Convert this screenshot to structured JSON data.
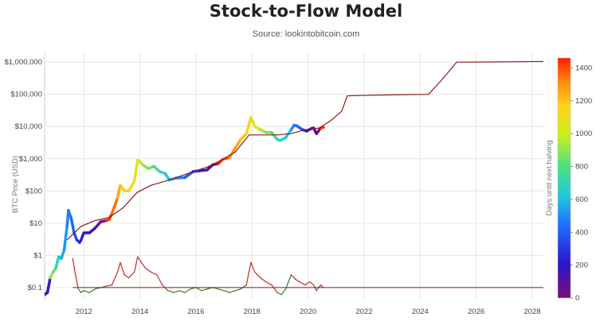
{
  "title": "Stock-to-Flow Model",
  "subtitle": "Source: lookintobitcoin.com",
  "colors": {
    "model_line": "#8b1a1a",
    "ratio_low": "#2e7d32",
    "ratio_high": "#c62828",
    "ratio_baseline": "#8b1a1a",
    "grid": "#e6e6e6"
  },
  "chart_data": {
    "type": "line",
    "title": "Stock-to-Flow Model",
    "subtitle": "Source: lookintobitcoin.com",
    "xlabel": "",
    "ylabel": "BTC Price (USD)",
    "yscale": "log",
    "xlim": [
      2010.6,
      2028.4
    ],
    "ylim": [
      0.04,
      2000000
    ],
    "grid": true,
    "x_ticks": [
      2012,
      2014,
      2016,
      2018,
      2020,
      2022,
      2024,
      2026,
      2028
    ],
    "x_tick_labels": [
      "2012",
      "2014",
      "2016",
      "2018",
      "2020",
      "2022",
      "2024",
      "2026",
      "2028"
    ],
    "y_ticks": [
      0.1,
      1,
      10,
      100,
      1000,
      10000,
      100000,
      1000000
    ],
    "y_tick_labels": [
      "$0.1",
      "$1",
      "$10",
      "$100",
      "$1,000",
      "$10,000",
      "$100,000",
      "$1,000,000"
    ],
    "colorbar": {
      "label": "Days until next halving",
      "min": 0,
      "max": 1460,
      "ticks": [
        0,
        200,
        400,
        600,
        800,
        1000,
        1200,
        1400
      ],
      "tick_labels": [
        "0",
        "200",
        "400",
        "600",
        "800",
        "1000",
        "1200",
        "1400"
      ]
    },
    "series": [
      {
        "key": "price",
        "style": "colored-by-days-to-halving",
        "x": [
          2010.6,
          2010.7,
          2010.8,
          2010.9,
          2011.0,
          2011.1,
          2011.2,
          2011.3,
          2011.4,
          2011.45,
          2011.55,
          2011.65,
          2011.75,
          2011.85,
          2011.9,
          2012.0,
          2012.2,
          2012.4,
          2012.6,
          2012.8,
          2012.9,
          2013.0,
          2013.2,
          2013.3,
          2013.45,
          2013.6,
          2013.8,
          2013.92,
          2014.0,
          2014.15,
          2014.3,
          2014.5,
          2014.7,
          2014.9,
          2015.05,
          2015.3,
          2015.6,
          2015.9,
          2016.1,
          2016.4,
          2016.6,
          2016.8,
          2016.95,
          2017.2,
          2017.45,
          2017.6,
          2017.8,
          2017.96,
          2018.1,
          2018.3,
          2018.5,
          2018.7,
          2018.9,
          2019.0,
          2019.2,
          2019.4,
          2019.5,
          2019.6,
          2019.8,
          2019.95,
          2020.1,
          2020.2,
          2020.3,
          2020.45,
          2020.55
        ],
        "y": [
          0.06,
          0.07,
          0.2,
          0.3,
          0.4,
          0.9,
          0.8,
          1.5,
          8,
          25,
          14,
          5,
          3,
          2.5,
          3,
          5,
          5,
          7,
          11,
          12,
          13,
          20,
          60,
          150,
          100,
          100,
          200,
          900,
          800,
          600,
          500,
          580,
          400,
          350,
          220,
          250,
          260,
          400,
          420,
          450,
          650,
          700,
          950,
          1100,
          2500,
          4000,
          6000,
          19000,
          10000,
          8000,
          6500,
          6500,
          4000,
          3700,
          4500,
          8000,
          11000,
          10500,
          8000,
          7200,
          8500,
          9000,
          6000,
          9000,
          9500
        ],
        "days_to_halving": [
          140,
          160,
          900,
          850,
          700,
          600,
          560,
          520,
          480,
          460,
          420,
          360,
          300,
          260,
          240,
          200,
          140,
          80,
          30,
          1450,
          1420,
          1350,
          1250,
          1180,
          1150,
          1100,
          1050,
          1000,
          960,
          900,
          850,
          760,
          700,
          620,
          560,
          480,
          400,
          300,
          220,
          130,
          20,
          1440,
          1400,
          1300,
          1240,
          1200,
          1150,
          1080,
          1000,
          920,
          860,
          780,
          700,
          680,
          620,
          500,
          450,
          420,
          300,
          220,
          150,
          110,
          70,
          1440,
          1400
        ]
      },
      {
        "key": "model",
        "name": "",
        "x": [
          2011.4,
          2011.9,
          2012.4,
          2012.9,
          2013.4,
          2013.9,
          2014.4,
          2014.9,
          2015.4,
          2015.9,
          2016.4,
          2016.9,
          2017.4,
          2017.9,
          2018.4,
          2018.9,
          2019.4,
          2019.9,
          2020.4,
          2020.8,
          2021.2,
          2021.4,
          2021.8,
          2022.5,
          2023.5,
          2024.3,
          2024.8,
          2025.3,
          2025.6,
          2026.5,
          2027.5,
          2028.4
        ],
        "y": [
          3,
          8,
          12,
          15,
          30,
          90,
          150,
          200,
          280,
          400,
          550,
          900,
          1600,
          5500,
          5500,
          5500,
          6000,
          8000,
          9000,
          15000,
          30000,
          90000,
          92000,
          95000,
          98000,
          100000,
          300000,
          1000000,
          1000000,
          1010000,
          1030000,
          1050000
        ]
      },
      {
        "key": "ratio",
        "name": "",
        "x": [
          2011.6,
          2011.7,
          2011.8,
          2011.9,
          2012.0,
          2012.2,
          2012.4,
          2012.6,
          2012.8,
          2013.0,
          2013.2,
          2013.3,
          2013.45,
          2013.6,
          2013.8,
          2013.92,
          2014.05,
          2014.2,
          2014.4,
          2014.6,
          2014.8,
          2015.0,
          2015.2,
          2015.4,
          2015.6,
          2015.8,
          2016.0,
          2016.2,
          2016.4,
          2016.6,
          2016.8,
          2017.0,
          2017.2,
          2017.4,
          2017.6,
          2017.8,
          2017.96,
          2018.1,
          2018.3,
          2018.5,
          2018.7,
          2018.9,
          2019.05,
          2019.2,
          2019.4,
          2019.55,
          2019.7,
          2019.9,
          2020.05,
          2020.2,
          2020.3,
          2020.45,
          2020.55
        ],
        "y": [
          0.8,
          0.25,
          0.09,
          0.07,
          0.08,
          0.07,
          0.09,
          0.1,
          0.11,
          0.12,
          0.3,
          0.6,
          0.25,
          0.2,
          0.3,
          0.9,
          0.6,
          0.4,
          0.3,
          0.25,
          0.12,
          0.08,
          0.07,
          0.08,
          0.07,
          0.09,
          0.1,
          0.08,
          0.09,
          0.1,
          0.09,
          0.08,
          0.07,
          0.08,
          0.09,
          0.12,
          0.6,
          0.3,
          0.2,
          0.15,
          0.12,
          0.07,
          0.06,
          0.09,
          0.25,
          0.18,
          0.15,
          0.12,
          0.15,
          0.12,
          0.08,
          0.12,
          0.1
        ]
      },
      {
        "key": "ratio_baseline",
        "name": "",
        "x": [
          2011.6,
          2028.4
        ],
        "y": [
          0.1,
          0.1
        ]
      }
    ]
  }
}
